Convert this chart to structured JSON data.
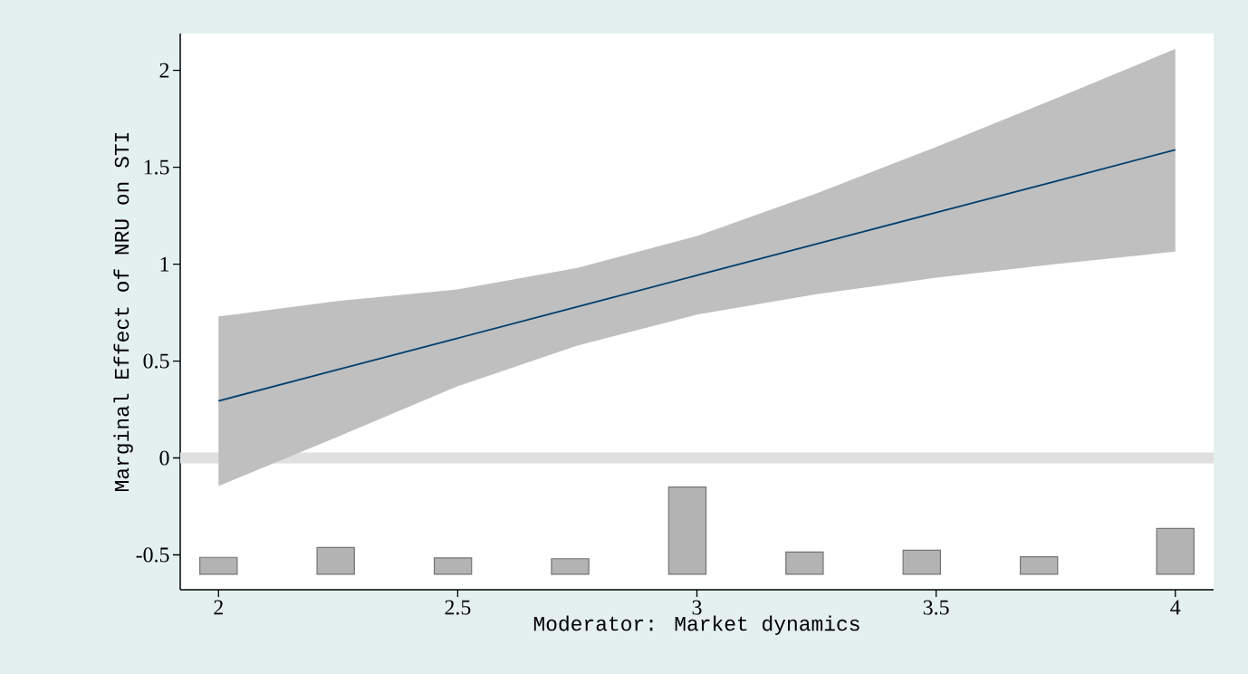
{
  "chart_data": {
    "type": "line",
    "xlabel": "Moderator: Market dynamics",
    "ylabel": "Marginal Effect of NRU on STI",
    "xlim": [
      1.92,
      4.08
    ],
    "ylim": [
      -0.68,
      2.19
    ],
    "xticks": [
      2,
      2.5,
      3,
      3.5,
      4
    ],
    "yticks": [
      -0.5,
      0,
      0.5,
      1,
      1.5,
      2
    ],
    "ref_lines": [
      {
        "axis": "y",
        "value": 0,
        "color": "#e0e0e0"
      }
    ],
    "series": [
      {
        "color": "#003f6e",
        "x": [
          2,
          2.25,
          2.5,
          2.75,
          3,
          3.25,
          3.5,
          3.75,
          4
        ],
        "values": [
          0.294,
          0.456,
          0.618,
          0.78,
          0.942,
          1.104,
          1.266,
          1.428,
          1.59
        ],
        "lower": [
          -0.145,
          0.11,
          0.37,
          0.58,
          0.74,
          0.845,
          0.93,
          1.0,
          1.065
        ],
        "upper": [
          0.73,
          0.81,
          0.87,
          0.98,
          1.145,
          1.365,
          1.605,
          1.855,
          2.11
        ]
      },
      {
        "type": "bar",
        "color": "#b3b3b3",
        "x": [
          2,
          2.245,
          2.49,
          2.735,
          2.98,
          3.225,
          3.47,
          3.715,
          4
        ],
        "base": [
          -0.6,
          -0.6,
          -0.6,
          -0.6,
          -0.6,
          -0.6,
          -0.6,
          -0.6,
          -0.6
        ],
        "values": [
          0.087,
          0.138,
          0.084,
          0.08,
          0.45,
          0.115,
          0.124,
          0.09,
          0.236
        ]
      }
    ]
  }
}
